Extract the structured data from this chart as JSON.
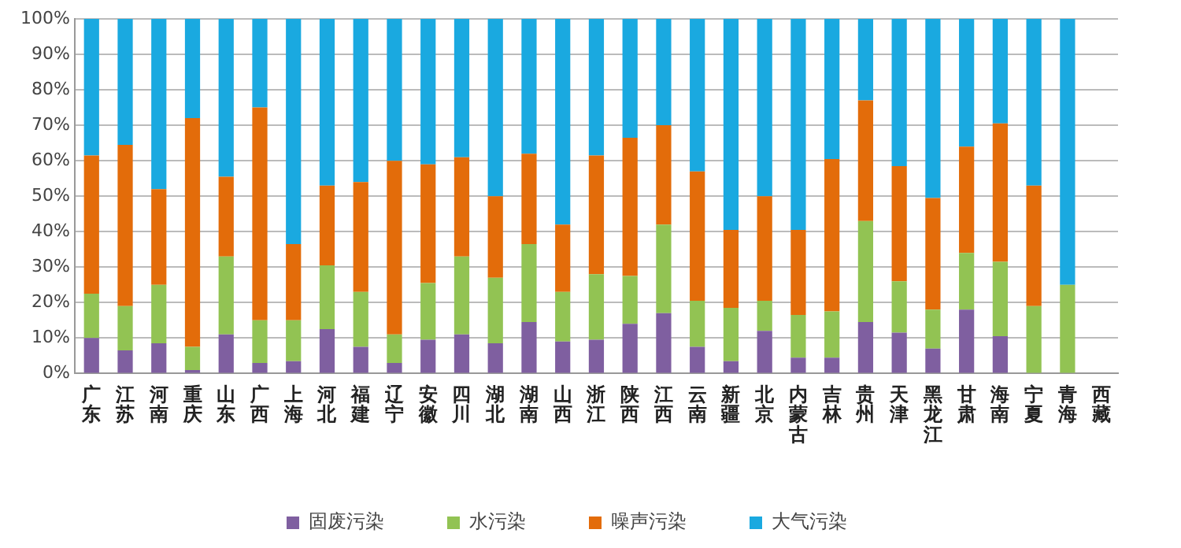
{
  "chart_data": {
    "type": "bar",
    "stacked": true,
    "categories": [
      "广东",
      "江苏",
      "河南",
      "重庆",
      "山东",
      "广西",
      "上海",
      "河北",
      "福建",
      "辽宁",
      "安徽",
      "四川",
      "湖北",
      "湖南",
      "山西",
      "浙江",
      "陕西",
      "江西",
      "云南",
      "新疆",
      "北京",
      "内蒙古",
      "吉林",
      "贵州",
      "天津",
      "黑龙江",
      "甘肃",
      "海南",
      "宁夏",
      "青海",
      "西藏"
    ],
    "series": [
      {
        "name": "固废污染",
        "color": "#7f5fa0",
        "values": [
          10,
          6.5,
          8.5,
          1,
          11,
          3,
          3.5,
          12.5,
          7.5,
          3,
          9.5,
          11,
          8.5,
          14.5,
          9,
          9.5,
          14,
          17,
          7.5,
          3.5,
          12,
          4.5,
          4.5,
          14.5,
          11.5,
          7,
          18,
          10.5,
          0,
          0,
          null
        ]
      },
      {
        "name": "水污染",
        "color": "#92c353",
        "values": [
          12.5,
          12.5,
          16.5,
          6.5,
          22,
          12,
          11.5,
          18,
          15.5,
          8,
          16,
          22,
          18.5,
          22,
          14,
          18.5,
          13.5,
          25,
          13,
          15,
          8.5,
          12,
          13,
          28.5,
          14.5,
          11,
          16,
          21,
          19,
          25,
          null
        ]
      },
      {
        "name": "噪声污染",
        "color": "#e36c0a",
        "values": [
          39,
          45.5,
          27,
          64.5,
          22.5,
          60,
          21.5,
          22.5,
          31,
          49,
          33.5,
          28,
          23,
          25.5,
          19,
          33.5,
          39,
          28,
          36.5,
          22,
          29.5,
          24,
          43,
          34,
          32.5,
          31.5,
          30,
          39,
          34,
          0,
          null
        ]
      },
      {
        "name": "大气污染",
        "color": "#1aa9e0",
        "values": [
          38.5,
          35.5,
          48,
          28,
          44.5,
          25,
          63.5,
          47,
          46,
          40,
          41,
          39,
          50,
          38,
          58,
          38.5,
          33.5,
          30,
          43,
          59.5,
          50,
          59.5,
          39.5,
          23,
          41.5,
          50.5,
          36,
          29.5,
          47,
          75,
          null
        ]
      }
    ],
    "ylim": [
      0,
      100
    ],
    "yticks": [
      {
        "value": 0,
        "label": "0%"
      },
      {
        "value": 10,
        "label": "10%"
      },
      {
        "value": 20,
        "label": "20%"
      },
      {
        "value": 30,
        "label": "30%"
      },
      {
        "value": 40,
        "label": "40%"
      },
      {
        "value": 50,
        "label": "50%"
      },
      {
        "value": 60,
        "label": "60%"
      },
      {
        "value": 70,
        "label": "70%"
      },
      {
        "value": 80,
        "label": "80%"
      },
      {
        "value": 90,
        "label": "90%"
      },
      {
        "value": 100,
        "label": "100%"
      }
    ],
    "grid": "y",
    "legend": "bottom"
  }
}
